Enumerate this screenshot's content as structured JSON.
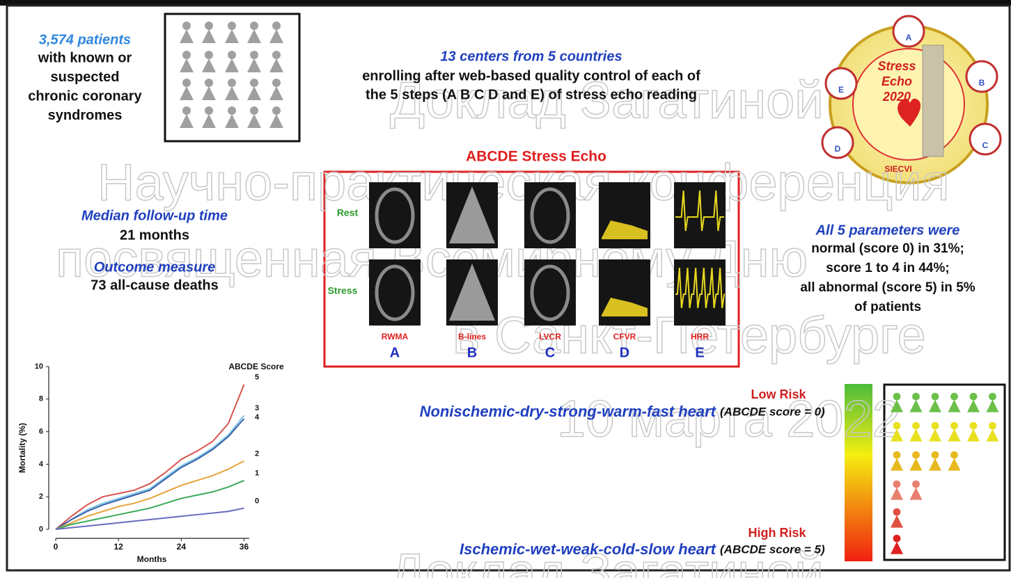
{
  "patients": {
    "headline": "3,574 patients",
    "lines": [
      "with known or",
      "suspected",
      "chronic coronary",
      "syndromes"
    ]
  },
  "centers": {
    "headline": "13 centers from 5 countries",
    "lines": [
      "enrolling after web-based quality control of each of",
      "the 5 steps (A B C D and E) of stress echo reading"
    ]
  },
  "logo": {
    "lines": [
      "Stress",
      "Echo",
      "2020"
    ],
    "society": "SIECVI",
    "steps": [
      "A",
      "B",
      "C",
      "D",
      "E"
    ]
  },
  "follow_up": {
    "headline": "Median follow-up time",
    "value": "21 months"
  },
  "outcome": {
    "headline": "Outcome measure",
    "value": "73 all-cause deaths"
  },
  "panel": {
    "title": "ABCDE Stress Echo",
    "rows": [
      "Rest",
      "Stress"
    ],
    "steps": [
      {
        "name": "RWMA",
        "letter": "A"
      },
      {
        "name": "B-lines",
        "letter": "B"
      },
      {
        "name": "LVCR",
        "letter": "C"
      },
      {
        "name": "CFVR",
        "letter": "D"
      },
      {
        "name": "HRR",
        "letter": "E"
      }
    ]
  },
  "parameters": {
    "headline": "All 5 parameters were",
    "lines": [
      "normal (score 0) in 31%;",
      "score 1 to 4 in 44%;",
      "all abnormal (score 5) in 5%",
      "of patients"
    ]
  },
  "risk": {
    "low": "Low Risk",
    "high": "High Risk",
    "top": {
      "text": "Nonischemic-dry-strong-warm-fast heart",
      "score": "(ABCDE score = 0)"
    },
    "bottom": {
      "text": "Ischemic-wet-weak-cold-slow heart",
      "score": "(ABCDE score = 5)"
    }
  },
  "watermark": [
    "Доклад Загатиной",
    "Научно-практическая конференция",
    "посвященная Всемирному Дню",
    "в Санкт-Петербурге",
    "10 марта 2022",
    "Доклад Загатиной"
  ],
  "chart_data": {
    "type": "line",
    "legend_title": "ABCDE Score",
    "x_label": "Months",
    "y_label": "Mortality (%)",
    "x": [
      0,
      3,
      6,
      9,
      12,
      15,
      18,
      21,
      24,
      27,
      30,
      33,
      36
    ],
    "xlim": [
      0,
      37
    ],
    "xticks": [
      0,
      12,
      24,
      36
    ],
    "ylim": [
      0,
      10
    ],
    "yticks": [
      0,
      2,
      4,
      6,
      8,
      10
    ],
    "series": [
      {
        "name": "5",
        "color": "#d9534f",
        "values": [
          0,
          0.8,
          1.5,
          2.0,
          2.2,
          2.4,
          2.8,
          3.5,
          4.3,
          4.8,
          5.4,
          6.5,
          8.9
        ]
      },
      {
        "name": "3",
        "color": "#7fc8e8",
        "values": [
          0,
          0.6,
          1.2,
          1.6,
          1.9,
          2.2,
          2.5,
          3.2,
          3.9,
          4.4,
          5.0,
          5.8,
          7.0
        ]
      },
      {
        "name": "4",
        "color": "#3a5fa8",
        "values": [
          0,
          0.6,
          1.1,
          1.5,
          1.8,
          2.1,
          2.4,
          3.1,
          3.8,
          4.3,
          4.9,
          5.7,
          6.8
        ]
      },
      {
        "name": "2",
        "color": "#e8a33a",
        "values": [
          0,
          0.4,
          0.8,
          1.1,
          1.4,
          1.6,
          1.9,
          2.3,
          2.7,
          3.0,
          3.3,
          3.7,
          4.2
        ]
      },
      {
        "name": "1",
        "color": "#3aaa5a",
        "values": [
          0,
          0.3,
          0.5,
          0.7,
          0.9,
          1.1,
          1.3,
          1.6,
          1.9,
          2.1,
          2.3,
          2.6,
          3.0
        ]
      },
      {
        "name": "0",
        "color": "#6a6ac0",
        "values": [
          0,
          0.1,
          0.2,
          0.3,
          0.4,
          0.5,
          0.6,
          0.7,
          0.8,
          0.9,
          1.0,
          1.1,
          1.3
        ]
      }
    ]
  }
}
